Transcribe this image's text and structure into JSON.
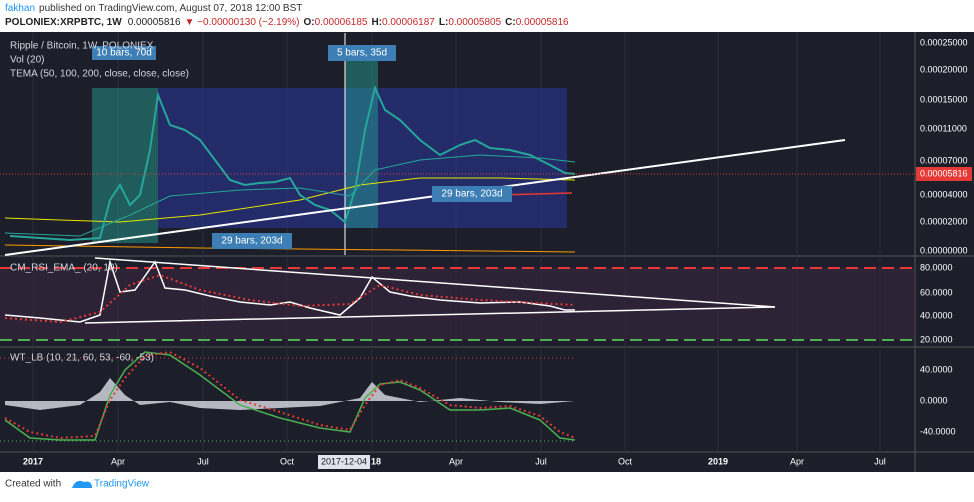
{
  "header": {
    "author": "fakhan",
    "published": "published on TradingView.com, August 07, 2018 12:00 BST",
    "symbol": "POLONIEX:XRPBTC, 1W",
    "last": "0.00005816",
    "change": "▼ −0.00000130 (−2.19%)",
    "open_label": "O:",
    "open": "0.00006185",
    "high_label": "H:",
    "high": "0.00006187",
    "low_label": "L:",
    "low": "0.00005805",
    "close_label": "C:",
    "close": "0.00005816"
  },
  "main_pane": {
    "legends": [
      "Ripple / Bitcoin, 1W, POLONIEX",
      "Vol (20)",
      "TEMA (50, 100, 200, close, close, close)"
    ],
    "price_labels": [
      "0.00025000",
      "0.00020000",
      "0.00015000",
      "0.00011000",
      "0.00007000",
      "0.00004000",
      "0.00002000",
      "0.00000000"
    ],
    "last_price_label": "0.00005816",
    "annotations": [
      "10 bars, 70d",
      "5 bars, 35d",
      "29 bars, 203d",
      "29 bars, 203d"
    ]
  },
  "rsi_pane": {
    "legend": "CM_RSI_EMA_ (20, 10)",
    "labels": [
      "80.0000",
      "60.0000",
      "40.0000",
      "20.0000"
    ]
  },
  "wt_pane": {
    "legend": "WT_LB (10, 21, 60, 53, -60, -53)",
    "labels": [
      "40.0000",
      "0.0000",
      "-40.0000"
    ]
  },
  "time_axis": {
    "labels": [
      "2017",
      "Apr",
      "Jul",
      "Oct",
      "2017-12-04",
      "18",
      "Apr",
      "Jul",
      "Oct",
      "2019",
      "Apr",
      "Jul"
    ]
  },
  "footer": {
    "created": "Created with",
    "brand": "TradingView"
  }
}
